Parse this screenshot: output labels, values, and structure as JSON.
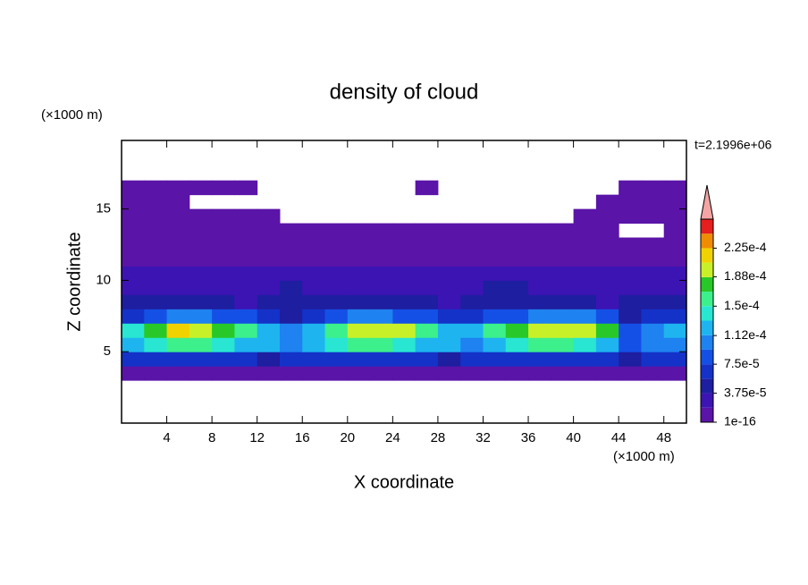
{
  "chart_data": {
    "type": "contour",
    "title": "density of cloud",
    "xlabel": "X coordinate",
    "ylabel": "Z coordinate",
    "xunit": "(×1000 m)",
    "yunit": "(×1000 m)",
    "time_label": "t=2.1996e+06",
    "xlim": [
      0,
      50
    ],
    "ylim": [
      0,
      19.8
    ],
    "xticks": [
      4,
      8,
      12,
      16,
      20,
      24,
      28,
      32,
      36,
      40,
      44,
      48
    ],
    "yticks": [
      5,
      10,
      15
    ],
    "x": [
      1,
      3,
      5,
      7,
      9,
      11,
      13,
      15,
      17,
      19,
      21,
      23,
      25,
      27,
      29,
      31,
      33,
      35,
      37,
      39,
      41,
      43,
      45,
      47,
      49
    ],
    "y": [
      3.5,
      4.5,
      5.5,
      6.5,
      7.5,
      8.5,
      9.5,
      10.5,
      11.5,
      12.5,
      13.5,
      14.5,
      15.5,
      16.5
    ],
    "z": [
      [
        5e-06,
        5e-06,
        5e-06,
        5e-06,
        5e-06,
        5e-06,
        5e-06,
        5e-06,
        5e-06,
        5e-06,
        5e-06,
        5e-06,
        5e-06,
        5e-06,
        5e-06,
        5e-06,
        5e-06,
        5e-06,
        5e-06,
        5e-06,
        5e-06,
        5e-06,
        5e-06,
        5e-06,
        5e-06
      ],
      [
        6e-05,
        6e-05,
        7e-05,
        7e-05,
        6e-05,
        6e-05,
        5e-05,
        6e-05,
        6e-05,
        6e-05,
        7e-05,
        7e-05,
        6e-05,
        6e-05,
        5e-05,
        6e-05,
        6e-05,
        6e-05,
        7e-05,
        7e-05,
        6e-05,
        6e-05,
        4e-05,
        6e-05,
        6e-05
      ],
      [
        0.00012,
        0.00014,
        0.00016,
        0.00015,
        0.00014,
        0.00013,
        0.00012,
        0.00011,
        0.00012,
        0.00014,
        0.00015,
        0.00015,
        0.00014,
        0.00013,
        0.00012,
        0.00011,
        0.00013,
        0.00014,
        0.00015,
        0.00015,
        0.00014,
        0.00013,
        8e-05,
        0.0001,
        0.00011
      ],
      [
        0.00014,
        0.00017,
        0.00021,
        0.0002,
        0.00017,
        0.00015,
        0.00013,
        0.00011,
        0.00012,
        0.00016,
        0.00019,
        0.0002,
        0.00019,
        0.00016,
        0.00013,
        0.00012,
        0.00015,
        0.00018,
        0.00019,
        0.0002,
        0.00019,
        0.00017,
        9e-05,
        0.00011,
        0.00012
      ],
      [
        7e-05,
        8e-05,
        0.0001,
        0.0001,
        9e-05,
        8e-05,
        6e-05,
        5e-05,
        6e-05,
        8e-05,
        0.0001,
        0.0001,
        9e-05,
        8e-05,
        7e-05,
        6e-05,
        8e-05,
        9e-05,
        0.00011,
        0.00011,
        0.0001,
        8e-05,
        5e-05,
        6e-05,
        7e-05
      ],
      [
        4e-05,
        4e-05,
        5e-05,
        4e-05,
        4e-05,
        3e-05,
        4e-05,
        5e-05,
        4e-05,
        4e-05,
        4e-05,
        5e-05,
        4e-05,
        4e-05,
        3e-05,
        4e-05,
        4e-05,
        5e-05,
        4e-05,
        4e-05,
        4e-05,
        3e-05,
        4e-05,
        4e-05,
        4e-05
      ],
      [
        3e-05,
        2.5e-05,
        3e-05,
        3e-05,
        2.5e-05,
        3e-05,
        3e-05,
        4e-05,
        3e-05,
        2.5e-05,
        3e-05,
        3e-05,
        2.5e-05,
        3e-05,
        3e-05,
        3e-05,
        4e-05,
        4e-05,
        3e-05,
        2.5e-05,
        3e-05,
        3e-05,
        3e-05,
        2.5e-05,
        3e-05
      ],
      [
        2e-05,
        2e-05,
        2.5e-05,
        2e-05,
        2e-05,
        2e-05,
        2.5e-05,
        2e-05,
        2e-05,
        2e-05,
        2e-05,
        2.5e-05,
        2e-05,
        2e-05,
        2e-05,
        2e-05,
        2.5e-05,
        2e-05,
        2e-05,
        2e-05,
        2e-05,
        2.5e-05,
        2e-05,
        2e-05,
        2e-05
      ],
      [
        1.5e-05,
        1.5e-05,
        1.2e-05,
        1.5e-05,
        1.5e-05,
        1.5e-05,
        1.2e-05,
        1.5e-05,
        1.5e-05,
        1.5e-05,
        1.2e-05,
        1.5e-05,
        1.5e-05,
        1.5e-05,
        1.2e-05,
        1.5e-05,
        1.5e-05,
        1.5e-05,
        1.2e-05,
        1.5e-05,
        1.5e-05,
        1.5e-05,
        1.2e-05,
        1.5e-05,
        1.5e-05
      ],
      [
        1e-05,
        1e-05,
        1e-05,
        1e-05,
        1e-05,
        1e-05,
        1e-05,
        1e-05,
        1e-05,
        1e-05,
        1e-05,
        1e-05,
        1e-05,
        1e-05,
        1e-05,
        1e-05,
        1e-05,
        1e-05,
        1e-05,
        1e-05,
        1e-05,
        1e-05,
        1e-05,
        1e-05,
        1e-05
      ],
      [
        6e-06,
        6e-06,
        6e-06,
        6e-06,
        6e-06,
        6e-06,
        6e-06,
        6e-06,
        6e-06,
        6e-06,
        6e-06,
        6e-06,
        6e-06,
        6e-06,
        6e-06,
        6e-06,
        6e-06,
        6e-06,
        6e-06,
        6e-06,
        6e-06,
        6e-06,
        null,
        null,
        6e-06
      ],
      [
        5e-06,
        5e-06,
        5e-06,
        5e-06,
        5e-06,
        5e-06,
        5e-06,
        null,
        null,
        null,
        null,
        null,
        null,
        null,
        null,
        null,
        null,
        null,
        null,
        null,
        5e-06,
        5e-06,
        5e-06,
        5e-06,
        5e-06
      ],
      [
        5e-06,
        5e-06,
        5e-06,
        null,
        null,
        null,
        null,
        null,
        null,
        null,
        null,
        null,
        null,
        null,
        null,
        null,
        null,
        null,
        null,
        null,
        null,
        5e-06,
        5e-06,
        5e-06,
        5e-06
      ],
      [
        5e-06,
        5e-06,
        5e-06,
        5e-06,
        5e-06,
        5e-06,
        null,
        null,
        null,
        null,
        null,
        null,
        null,
        5e-06,
        null,
        null,
        null,
        null,
        null,
        null,
        null,
        null,
        5e-06,
        5e-06,
        5e-06
      ]
    ],
    "levels": [
      1e-16,
      1.875e-05,
      3.75e-05,
      5.625e-05,
      7.5e-05,
      9.375e-05,
      0.0001125,
      0.00013125,
      0.00015,
      0.00016875,
      0.0001875,
      0.00020625,
      0.000225,
      0.00024375,
      0.0002625
    ],
    "colors": [
      "#5a14a8",
      "#3c14b4",
      "#1e1ea0",
      "#1432c8",
      "#1450e6",
      "#1e82f0",
      "#1eb4f0",
      "#28e6d2",
      "#3cf08c",
      "#28c828",
      "#c8f028",
      "#f0d200",
      "#f08c00",
      "#e61e1e"
    ],
    "overflow_color": "#f4a4a4",
    "colorbar_ticks": [
      1e-16,
      {
        "value": 3.75e-05,
        "label": "3.75e-5"
      },
      {
        "value": 7.5e-05,
        "label": "7.5e-5"
      },
      {
        "value": 0.000112,
        "label": "1.12e-4"
      },
      {
        "value": 0.00015,
        "label": "1.5e-4"
      },
      {
        "value": 0.000188,
        "label": "1.88e-4"
      },
      {
        "value": 0.000225,
        "label": "2.25e-4"
      }
    ]
  }
}
